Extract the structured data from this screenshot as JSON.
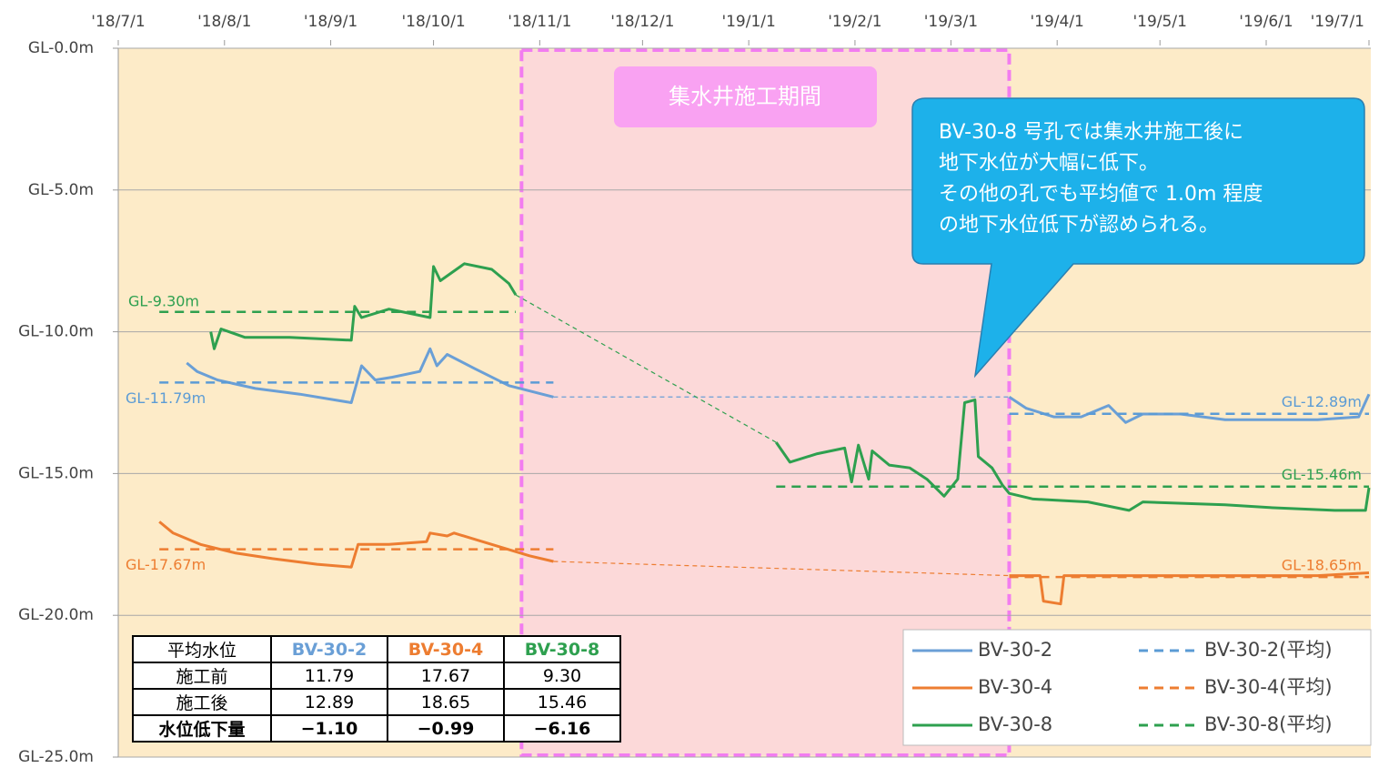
{
  "chart_data": {
    "type": "line",
    "xlim": [
      "2018-07-01",
      "2019-07-01"
    ],
    "ylim": [
      0,
      -25
    ],
    "xticks": [
      {
        "value": "2018-07-01",
        "label": "'18/7/1"
      },
      {
        "value": "2018-08-01",
        "label": "'18/8/1"
      },
      {
        "value": "2018-09-01",
        "label": "'18/9/1"
      },
      {
        "value": "2018-10-01",
        "label": "'18/10/1"
      },
      {
        "value": "2018-11-01",
        "label": "'18/11/1"
      },
      {
        "value": "2018-12-01",
        "label": "'18/12/1"
      },
      {
        "value": "2019-01-01",
        "label": "'19/1/1"
      },
      {
        "value": "2019-02-01",
        "label": "'19/2/1"
      },
      {
        "value": "2019-03-01",
        "label": "'19/3/1"
      },
      {
        "value": "2019-04-01",
        "label": "'19/4/1"
      },
      {
        "value": "2019-05-01",
        "label": "'19/5/1"
      },
      {
        "value": "2019-06-01",
        "label": "'19/6/1"
      },
      {
        "value": "2019-07-01",
        "label": "'19/7/1"
      }
    ],
    "yticks": [
      {
        "value": 0,
        "label": "GL-0.0m"
      },
      {
        "value": -5,
        "label": "GL-5.0m"
      },
      {
        "value": -10,
        "label": "GL-10.0m"
      },
      {
        "value": -15,
        "label": "GL-15.0m"
      },
      {
        "value": -20,
        "label": "GL-20.0m"
      },
      {
        "value": -25,
        "label": "GL-25.0m"
      }
    ],
    "grid": true,
    "period": {
      "start": "2018-11-01",
      "end": "2019-03-18",
      "label": "集水井施工期間"
    },
    "callout": [
      "BV-30-8 号孔では集水井施工後に",
      "地下水位が大幅に低下。",
      "その他の孔でも平均値で 1.0m 程度",
      "の地下水位低下が認められる。"
    ],
    "series": [
      {
        "name": "BV-30-2",
        "color": "#6a9fd6",
        "dashed": false,
        "x": [
          "2018-07-21",
          "2018-07-24",
          "2018-07-30",
          "2018-08-10",
          "2018-08-23",
          "2018-09-07",
          "2018-09-10",
          "2018-09-14",
          "2018-09-19",
          "2018-09-27",
          "2018-09-30",
          "2018-10-02",
          "2018-10-05",
          "2018-10-13",
          "2018-10-23",
          "2018-11-05",
          "2018-12-01",
          "2019-03-18",
          "2019-03-23",
          "2019-03-31",
          "2019-04-08",
          "2019-04-16",
          "2019-04-21",
          "2019-04-26",
          "2019-05-07",
          "2019-05-20",
          "2019-06-02",
          "2019-06-16",
          "2019-06-28",
          "2019-07-01"
        ],
        "values": [
          -11.1,
          -11.4,
          -11.7,
          -12.0,
          -12.2,
          -12.5,
          -11.2,
          -11.7,
          -11.6,
          -11.4,
          -10.6,
          -11.2,
          -10.8,
          -11.3,
          -11.9,
          -12.3,
          null,
          -12.3,
          -12.7,
          -13.0,
          -13.0,
          -12.6,
          -13.2,
          -12.9,
          -12.9,
          -13.1,
          -13.1,
          -13.1,
          -13.0,
          -12.2
        ]
      },
      {
        "name": "BV-30-4",
        "color": "#ed7d31",
        "dashed": false,
        "x": [
          "2018-07-13",
          "2018-07-17",
          "2018-07-25",
          "2018-08-04",
          "2018-08-15",
          "2018-08-28",
          "2018-09-07",
          "2018-09-09",
          "2018-09-18",
          "2018-09-29",
          "2018-09-30",
          "2018-10-05",
          "2018-10-07",
          "2018-10-18",
          "2018-10-29",
          "2018-11-05",
          "2018-12-01",
          "2019-03-18",
          "2019-03-27",
          "2019-03-28",
          "2019-04-02",
          "2019-04-03",
          "2019-04-24",
          "2019-05-20",
          "2019-06-16",
          "2019-07-01"
        ],
        "values": [
          -16.7,
          -17.1,
          -17.5,
          -17.8,
          -18.0,
          -18.2,
          -18.3,
          -17.5,
          -17.5,
          -17.4,
          -17.1,
          -17.2,
          -17.1,
          -17.5,
          -17.9,
          -18.1,
          null,
          -18.6,
          -18.6,
          -19.5,
          -19.6,
          -18.6,
          -18.6,
          -18.6,
          -18.6,
          -18.5
        ]
      },
      {
        "name": "BV-30-8",
        "color": "#2ea04f",
        "dashed": false,
        "x": [
          "2018-07-28",
          "2018-07-29",
          "2018-07-31",
          "2018-08-07",
          "2018-08-20",
          "2018-09-07",
          "2018-09-08",
          "2018-09-10",
          "2018-09-18",
          "2018-09-26",
          "2018-09-30",
          "2018-10-01",
          "2018-10-03",
          "2018-10-10",
          "2018-10-18",
          "2018-10-23",
          "2018-10-25",
          "2018-12-01",
          "2019-01-09",
          "2019-01-13",
          "2019-01-21",
          "2019-01-29",
          "2019-01-31",
          "2019-02-02",
          "2019-02-05",
          "2019-02-06",
          "2019-02-11",
          "2019-02-17",
          "2019-02-22",
          "2019-02-27",
          "2019-03-03",
          "2019-03-05",
          "2019-03-08",
          "2019-03-09",
          "2019-03-13",
          "2019-03-16",
          "2019-03-18",
          "2019-03-25",
          "2019-04-10",
          "2019-04-22",
          "2019-04-26",
          "2019-05-20",
          "2019-06-02",
          "2019-06-21",
          "2019-06-30",
          "2019-07-01"
        ],
        "values": [
          -10.0,
          -10.6,
          -9.9,
          -10.2,
          -10.2,
          -10.3,
          -9.1,
          -9.5,
          -9.2,
          -9.4,
          -9.5,
          -7.7,
          -8.2,
          -7.6,
          -7.8,
          -8.3,
          -8.7,
          null,
          -13.9,
          -14.6,
          -14.3,
          -14.1,
          -15.3,
          -14.0,
          -15.2,
          -14.2,
          -14.7,
          -14.8,
          -15.2,
          -15.8,
          -15.2,
          -12.5,
          -12.4,
          -14.4,
          -14.8,
          -15.4,
          -15.7,
          -15.9,
          -16.0,
          -16.3,
          -16.0,
          -16.1,
          -16.2,
          -16.3,
          -16.3,
          -15.5
        ]
      },
      {
        "name": "BV-30-2(平均)",
        "color": "#5b9bd5",
        "dashed": true,
        "x": [
          "2018-07-13",
          "2018-11-05",
          "2018-12-01",
          "2019-03-18",
          "2019-07-01"
        ],
        "values": [
          -11.79,
          -11.79,
          null,
          -12.89,
          -12.89
        ],
        "value_labels": [
          "GL-11.79m",
          null,
          null,
          "GL-12.89m",
          null
        ]
      },
      {
        "name": "BV-30-4(平均)",
        "color": "#ed7d31",
        "dashed": true,
        "x": [
          "2018-07-13",
          "2018-11-05",
          "2018-12-01",
          "2019-03-18",
          "2019-07-01"
        ],
        "values": [
          -17.67,
          -17.67,
          null,
          -18.65,
          -18.65
        ],
        "value_labels": [
          "GL-17.67m",
          null,
          null,
          "GL-18.65m",
          null
        ]
      },
      {
        "name": "BV-30-8(平均)",
        "color": "#2ea04f",
        "dashed": true,
        "x": [
          "2018-07-13",
          "2018-10-25",
          "2018-12-01",
          "2019-01-09",
          "2019-07-01"
        ],
        "values": [
          -9.3,
          -9.3,
          null,
          -15.46,
          -15.46
        ],
        "value_labels": [
          "GL-9.30m",
          null,
          null,
          "GL-15.46m",
          null
        ]
      }
    ]
  },
  "table": {
    "header": [
      "平均水位",
      "BV-30-2",
      "BV-30-4",
      "BV-30-8"
    ],
    "rows": [
      [
        "施工前",
        "11.79",
        "17.67",
        "9.30"
      ],
      [
        "施工後",
        "12.89",
        "18.65",
        "15.46"
      ],
      [
        "水位低下量",
        "−1.10",
        "−0.99",
        "−6.16"
      ]
    ]
  }
}
